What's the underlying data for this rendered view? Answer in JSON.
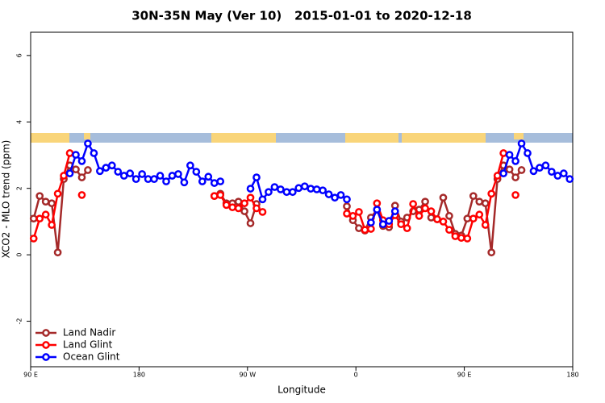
{
  "chart_data": {
    "type": "line",
    "title": "30N-35N May (Ver 10)   2015-01-01 to 2020-12-18",
    "x_label": "Longitude",
    "y_label": "XCO2 - MLO trend (ppm)",
    "xlim": [
      90,
      540
    ],
    "ylim": [
      -3.37,
      6.7
    ],
    "xticks": [
      {
        "value": 90,
        "label": "90 E"
      },
      {
        "value": 180,
        "label": "180"
      },
      {
        "value": 270,
        "label": "90 W"
      },
      {
        "value": 360,
        "label": "0"
      },
      {
        "value": 450,
        "label": "90 E"
      },
      {
        "value": 540,
        "label": "180"
      }
    ],
    "yticks": [
      -2,
      0,
      2,
      4,
      6
    ],
    "legend": "bottomleft",
    "series": [
      {
        "name": "Land Nadir",
        "color": "#a52a2a",
        "x": [
          92.5,
          97.5,
          102.5,
          107.5,
          112.5,
          117.5,
          122.5,
          127.5,
          132.5,
          137.5,
          242.5,
          247.5,
          252.5,
          257.5,
          262.5,
          267.5,
          272.5,
          277.5,
          352.5,
          357.5,
          362.5,
          367.5,
          372.5,
          377.5,
          382.5,
          387.5,
          392.5,
          397.5,
          402.5,
          407.5,
          412.5,
          417.5,
          422.5,
          427.5,
          432.5,
          437.5,
          442.5,
          447.5,
          452.5,
          457.5,
          462.5,
          467.5,
          472.5,
          477.5,
          482.5,
          487.5,
          492.5,
          497.5
        ],
        "values": [
          1.09,
          1.77,
          1.6,
          1.55,
          0.07,
          2.28,
          2.69,
          2.57,
          2.33,
          2.55,
          1.77,
          1.84,
          1.55,
          1.55,
          1.6,
          1.31,
          0.95,
          1.53,
          1.46,
          1.04,
          0.8,
          0.73,
          1.12,
          1.36,
          0.87,
          0.83,
          1.48,
          1.0,
          1.12,
          1.31,
          1.36,
          1.6,
          1.12,
          1.07,
          1.72,
          1.17,
          0.63,
          0.58,
          1.09,
          1.77,
          1.6,
          1.55,
          0.07,
          2.28,
          2.69,
          2.57,
          2.33,
          2.55
        ]
      },
      {
        "name": "Land Glint",
        "color": "#ff0000",
        "x": [
          92.5,
          97.5,
          102.5,
          107.5,
          112.5,
          117.5,
          122.5,
          132.5,
          242.5,
          247.5,
          252.5,
          257.5,
          262.5,
          267.5,
          272.5,
          277.5,
          282.5,
          352.5,
          357.5,
          362.5,
          367.5,
          372.5,
          377.5,
          382.5,
          387.5,
          392.5,
          397.5,
          402.5,
          407.5,
          412.5,
          417.5,
          422.5,
          427.5,
          432.5,
          437.5,
          442.5,
          447.5,
          452.5,
          457.5,
          462.5,
          467.5,
          472.5,
          477.5,
          482.5,
          492.5
        ],
        "values": [
          0.49,
          1.09,
          1.21,
          0.9,
          1.84,
          2.38,
          3.06,
          1.8,
          1.77,
          1.8,
          1.5,
          1.43,
          1.4,
          1.55,
          1.72,
          1.4,
          1.29,
          1.24,
          1.17,
          1.29,
          0.75,
          0.78,
          1.55,
          1.04,
          0.92,
          1.19,
          0.92,
          0.8,
          1.53,
          1.17,
          1.4,
          1.31,
          1.07,
          1.0,
          0.75,
          0.56,
          0.51,
          0.49,
          1.09,
          1.21,
          0.9,
          1.84,
          2.38,
          3.06,
          1.8
        ]
      },
      {
        "name": "Ocean Glint",
        "color": "#0000ff",
        "x": [
          122.5,
          127.5,
          132.5,
          137.5,
          142.5,
          147.5,
          152.5,
          157.5,
          162.5,
          167.5,
          172.5,
          177.5,
          182.5,
          187.5,
          192.5,
          197.5,
          202.5,
          207.5,
          212.5,
          217.5,
          222.5,
          227.5,
          232.5,
          237.5,
          242.5,
          247.5,
          272.5,
          277.5,
          282.5,
          287.5,
          292.5,
          297.5,
          302.5,
          307.5,
          312.5,
          317.5,
          322.5,
          327.5,
          332.5,
          337.5,
          342.5,
          347.5,
          352.5,
          372.5,
          377.5,
          382.5,
          387.5,
          392.5,
          482.5,
          487.5,
          492.5,
          497.5,
          502.5,
          507.5,
          512.5,
          517.5,
          522.5,
          527.5,
          532.5,
          537.5
        ],
        "values": [
          2.45,
          3.01,
          2.82,
          3.35,
          3.06,
          2.52,
          2.62,
          2.69,
          2.5,
          2.38,
          2.45,
          2.28,
          2.43,
          2.28,
          2.28,
          2.38,
          2.21,
          2.38,
          2.43,
          2.18,
          2.69,
          2.5,
          2.21,
          2.35,
          2.16,
          2.21,
          1.99,
          2.33,
          1.67,
          1.89,
          2.04,
          1.97,
          1.89,
          1.89,
          2.01,
          2.06,
          1.99,
          1.97,
          1.94,
          1.82,
          1.72,
          1.8,
          1.67,
          0.97,
          1.36,
          0.92,
          1.02,
          1.31,
          2.45,
          3.01,
          2.82,
          3.35,
          3.06,
          2.52,
          2.62,
          2.69,
          2.5,
          2.38,
          2.45,
          2.28
        ]
      }
    ]
  }
}
